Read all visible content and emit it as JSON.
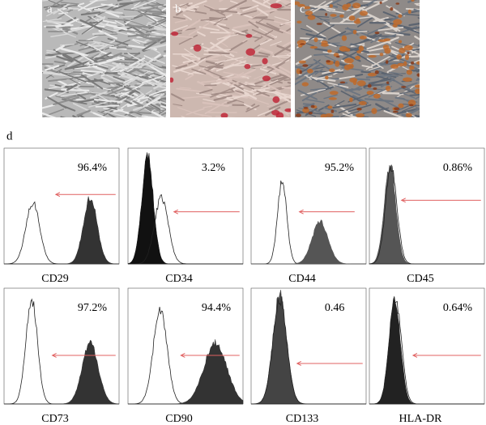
{
  "panel_labels": [
    "a",
    "b",
    "c",
    "d"
  ],
  "histograms": [
    {
      "marker": "CD29",
      "percent": "96.4%"
    },
    {
      "marker": "CD34",
      "percent": "3.2%"
    },
    {
      "marker": "CD44",
      "percent": "95.2%"
    },
    {
      "marker": "CD45",
      "percent": "0.86%"
    },
    {
      "marker": "CD73",
      "percent": "97.2%"
    },
    {
      "marker": "CD90",
      "percent": "94.4%"
    },
    {
      "marker": "CD133",
      "percent": "0.46"
    },
    {
      "marker": "HLA-DR",
      "percent": "0.64%"
    }
  ]
}
